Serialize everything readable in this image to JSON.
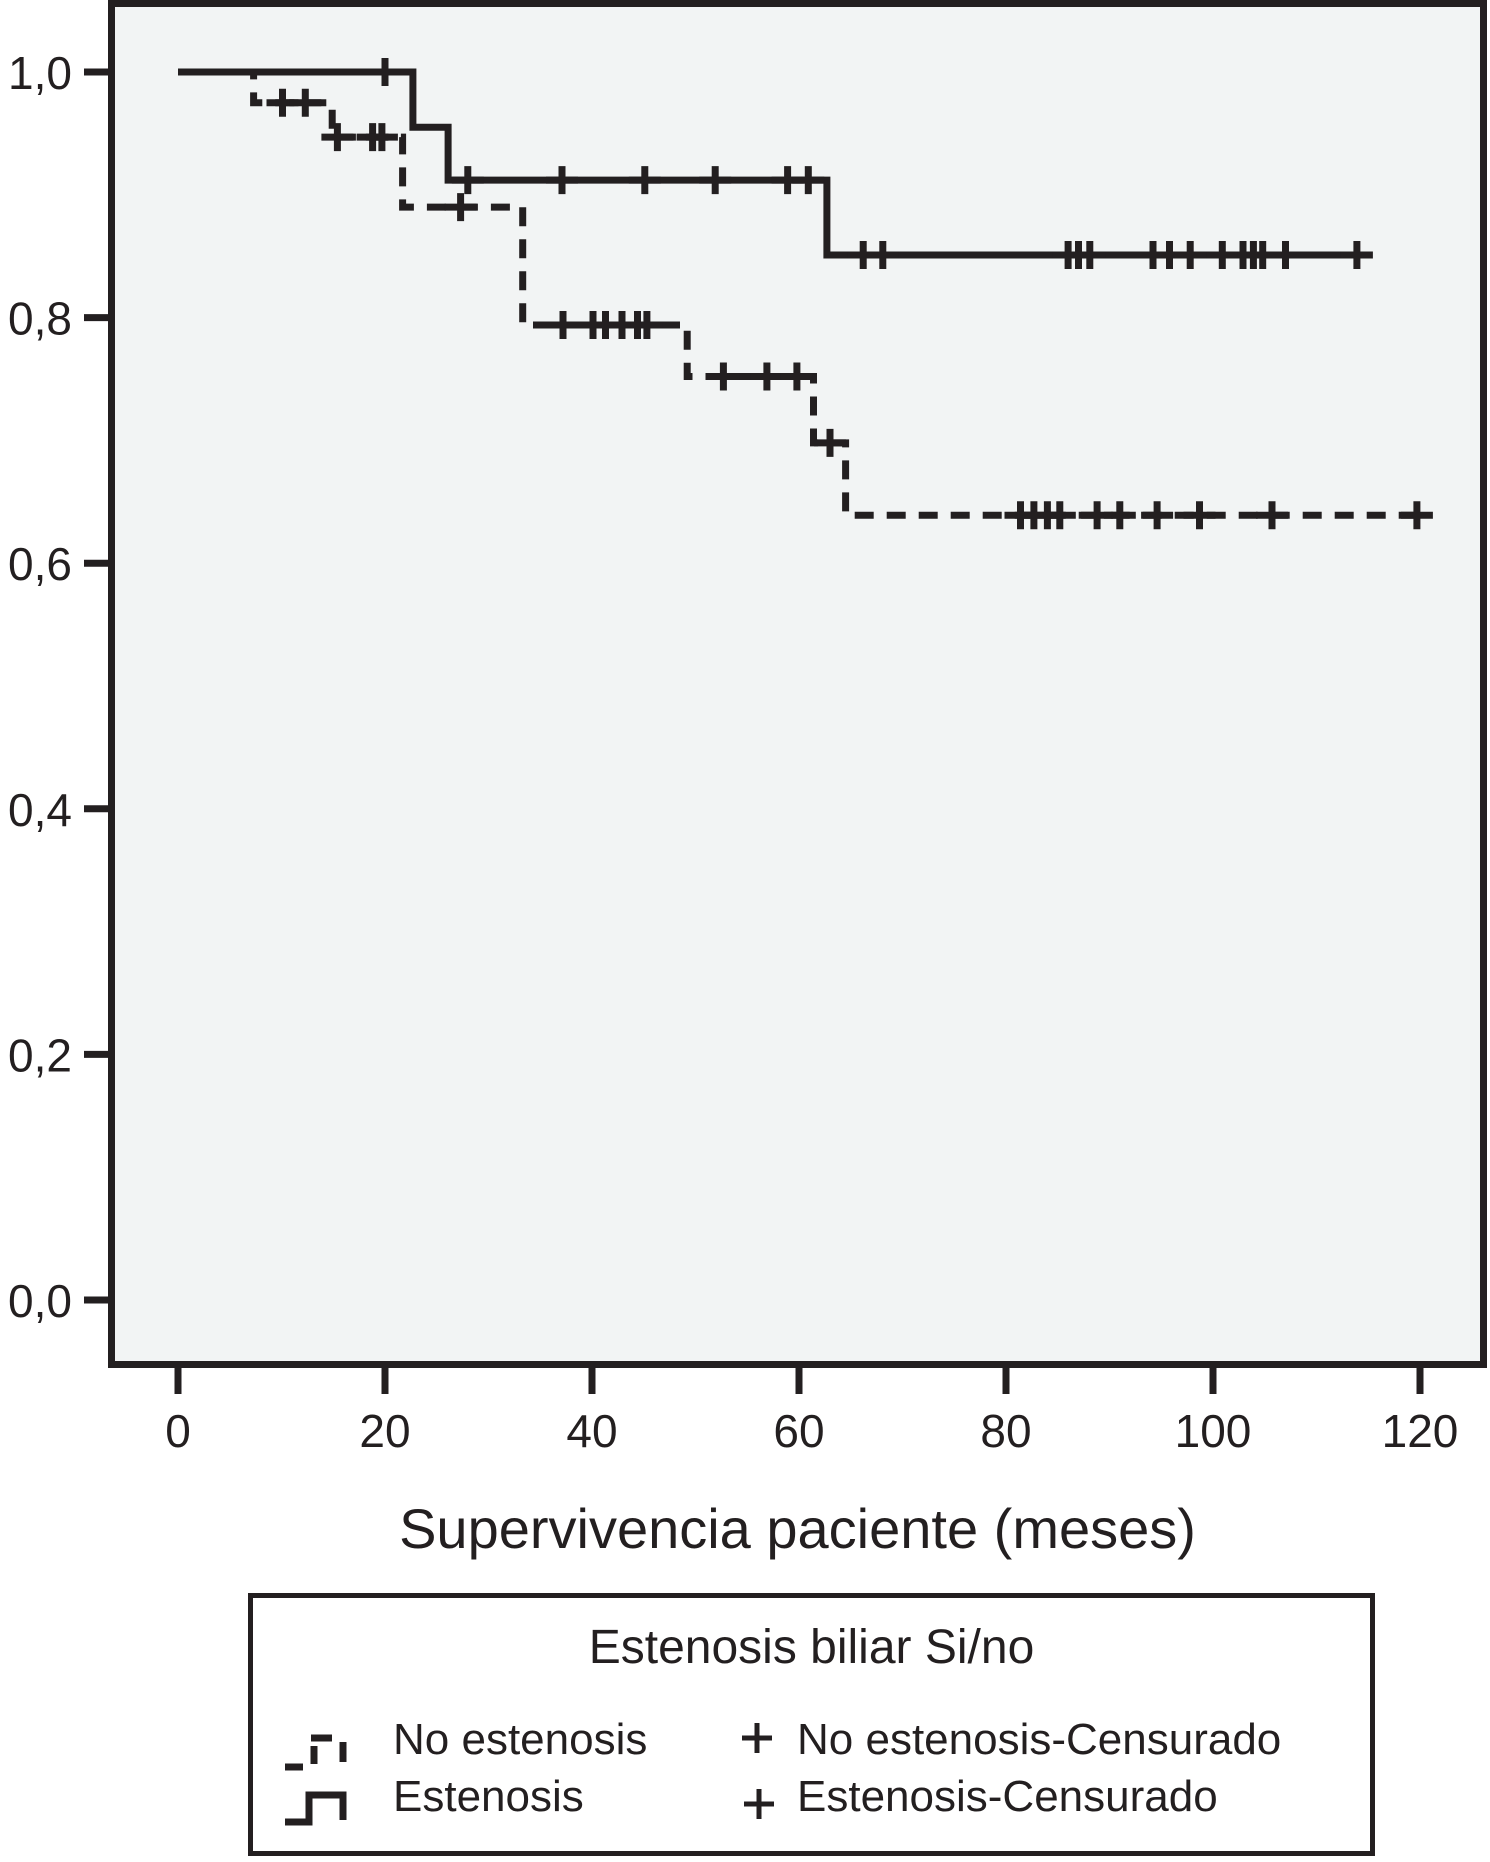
{
  "colors": {
    "ink": "#231f20",
    "plot_background": "#f2f4f4",
    "page_background": "#ffffff"
  },
  "chart_data": {
    "type": "line",
    "subtype": "kaplan-meier-step-survival",
    "title": "",
    "xlabel": "Supervivencia paciente (meses)",
    "ylabel": "",
    "xlim": [
      0,
      120
    ],
    "ylim": [
      0.0,
      1.0
    ],
    "grid": false,
    "legend_position": "bottom-box",
    "x_ticks": [
      {
        "label": "0",
        "value": 0
      },
      {
        "label": "20",
        "value": 20
      },
      {
        "label": "40",
        "value": 40
      },
      {
        "label": "60",
        "value": 60
      },
      {
        "label": "80",
        "value": 80
      },
      {
        "label": "100",
        "value": 100
      },
      {
        "label": "120",
        "value": 120
      }
    ],
    "y_ticks": [
      {
        "label": "1,0",
        "value": 1.0
      },
      {
        "label": "0,8",
        "value": 0.8
      },
      {
        "label": "0,6",
        "value": 0.6
      },
      {
        "label": "0,4",
        "value": 0.4
      },
      {
        "label": "0,2",
        "value": 0.2
      },
      {
        "label": "0,0",
        "value": 0.0
      }
    ],
    "series": [
      {
        "name": "No estenosis",
        "style": "dashed",
        "points": [
          [
            0,
            1.0
          ],
          [
            7.3,
            1.0
          ],
          [
            7.3,
            0.975
          ],
          [
            14.9,
            0.975
          ],
          [
            14.9,
            0.947
          ],
          [
            21.7,
            0.947
          ],
          [
            21.7,
            0.89
          ],
          [
            33.3,
            0.89
          ],
          [
            33.3,
            0.794
          ],
          [
            49.2,
            0.794
          ],
          [
            49.2,
            0.752
          ],
          [
            61.4,
            0.752
          ],
          [
            61.4,
            0.698
          ],
          [
            64.5,
            0.698
          ],
          [
            64.5,
            0.639
          ],
          [
            121.0,
            0.639
          ]
        ],
        "censors": [
          [
            10.1,
            0.975
          ],
          [
            12.3,
            0.975
          ],
          [
            15.4,
            0.947
          ],
          [
            18.8,
            0.947
          ],
          [
            19.7,
            0.947
          ],
          [
            27.3,
            0.89
          ],
          [
            37.2,
            0.794
          ],
          [
            40.1,
            0.794
          ],
          [
            41.3,
            0.794
          ],
          [
            42.9,
            0.794
          ],
          [
            44.4,
            0.794
          ],
          [
            45.3,
            0.794
          ],
          [
            52.7,
            0.752
          ],
          [
            56.9,
            0.752
          ],
          [
            59.8,
            0.752
          ],
          [
            63.0,
            0.698
          ],
          [
            81.4,
            0.639
          ],
          [
            82.7,
            0.639
          ],
          [
            84.0,
            0.639
          ],
          [
            85.2,
            0.639
          ],
          [
            88.8,
            0.639
          ],
          [
            91.0,
            0.639
          ],
          [
            94.6,
            0.639
          ],
          [
            98.7,
            0.639
          ],
          [
            105.7,
            0.639
          ],
          [
            119.7,
            0.639
          ]
        ]
      },
      {
        "name": "Estenosis",
        "style": "solid",
        "points": [
          [
            0,
            1.0
          ],
          [
            22.7,
            1.0
          ],
          [
            22.7,
            0.955
          ],
          [
            26.1,
            0.955
          ],
          [
            26.1,
            0.912
          ],
          [
            62.7,
            0.912
          ],
          [
            62.7,
            0.851
          ],
          [
            115.0,
            0.851
          ]
        ],
        "censors": [
          [
            20.0,
            1.0
          ],
          [
            28.0,
            0.912
          ],
          [
            37.1,
            0.912
          ],
          [
            45.1,
            0.912
          ],
          [
            51.9,
            0.912
          ],
          [
            58.9,
            0.912
          ],
          [
            60.9,
            0.912
          ],
          [
            66.2,
            0.851
          ],
          [
            68.1,
            0.851
          ],
          [
            86.0,
            0.851
          ],
          [
            87.0,
            0.851
          ],
          [
            88.1,
            0.851
          ],
          [
            94.2,
            0.851
          ],
          [
            95.8,
            0.851
          ],
          [
            97.8,
            0.851
          ],
          [
            100.9,
            0.851
          ],
          [
            102.9,
            0.851
          ],
          [
            103.9,
            0.851
          ],
          [
            104.8,
            0.851
          ],
          [
            107.0,
            0.851
          ],
          [
            113.9,
            0.851
          ]
        ]
      }
    ]
  },
  "legend": {
    "title": "Estenosis biliar Si/no",
    "line_entries": [
      {
        "label": "No estenosis",
        "style": "dashed"
      },
      {
        "label": "Estenosis",
        "style": "solid"
      }
    ],
    "censor_entries": [
      {
        "label": "No estenosis-Censurado",
        "marker": "+"
      },
      {
        "label": "Estenosis-Censurado",
        "marker": "+"
      }
    ]
  }
}
